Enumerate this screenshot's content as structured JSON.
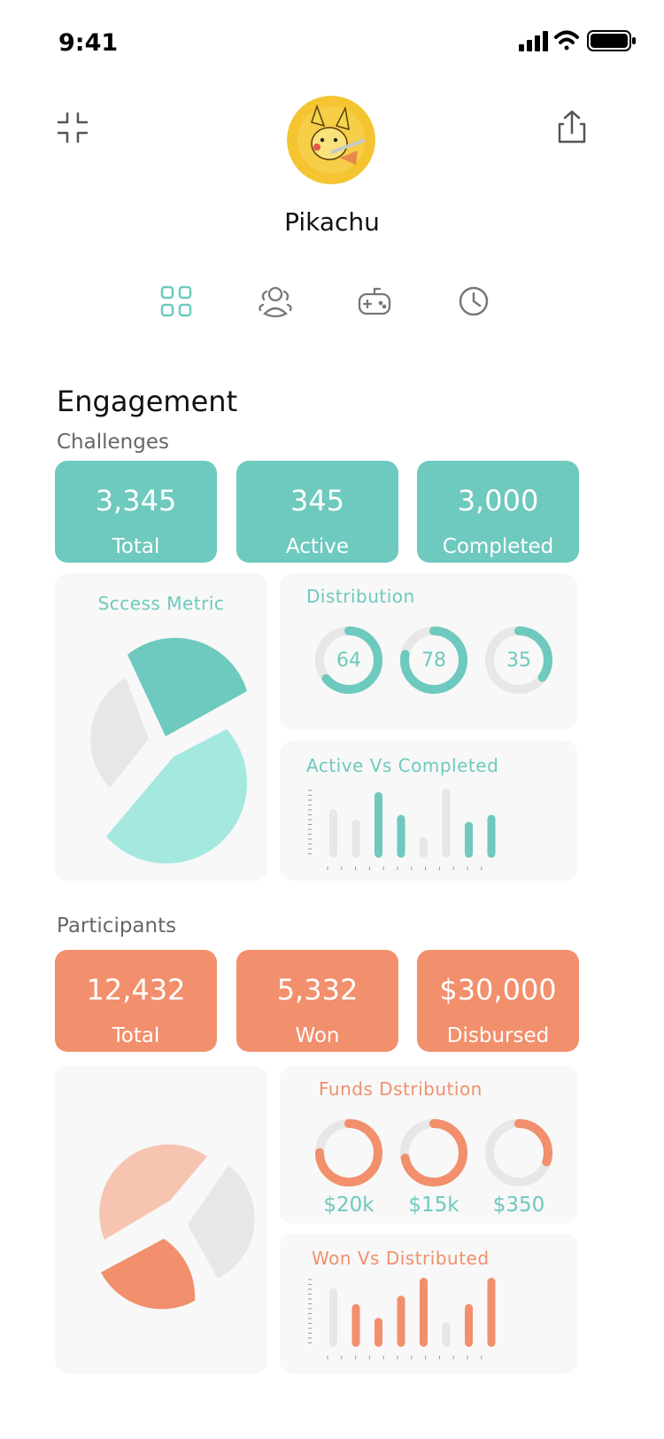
{
  "status": {
    "time": "9:41"
  },
  "profile": {
    "name": "Pikachu"
  },
  "tabs": [
    {
      "icon": "grid-icon",
      "active": true
    },
    {
      "icon": "users-icon",
      "active": false
    },
    {
      "icon": "gamepad-icon",
      "active": false
    },
    {
      "icon": "clock-icon",
      "active": false
    }
  ],
  "engagement": {
    "title": "Engagement",
    "challenges": {
      "heading": "Challenges",
      "stats": [
        {
          "value": "3,345",
          "label": "Total"
        },
        {
          "value": "345",
          "label": "Active"
        },
        {
          "value": "3,000",
          "label": "Completed"
        }
      ],
      "success_title": "Sccess Metric",
      "distribution_title": "Distribution",
      "distribution": [
        64,
        78,
        35
      ],
      "bars_title": "Active Vs Completed"
    },
    "participants": {
      "heading": "Participants",
      "stats": [
        {
          "value": "12,432",
          "label": "Total"
        },
        {
          "value": "5,332",
          "label": "Won"
        },
        {
          "value": "$30,000",
          "label": "Disbursed"
        }
      ],
      "funds_title": "Funds Dstribution",
      "funds": [
        {
          "label": "$20k",
          "fraction": 0.75
        },
        {
          "label": "$15k",
          "fraction": 0.72
        },
        {
          "label": "$350",
          "fraction": 0.3
        }
      ],
      "bars_title": "Won Vs Distributed"
    }
  },
  "colors": {
    "teal": "#6ec9be",
    "teal_light": "#a5e8e0",
    "coral": "#f28f6c",
    "coral_light": "#f7c4b2",
    "gray": "#e6e7e6"
  },
  "chart_data": [
    {
      "type": "pie",
      "series": [
        {
          "values": [
            30,
            42,
            28
          ]
        }
      ]
    },
    {
      "type": "pie",
      "series": [
        {
          "values": [
            0.64,
            0.78,
            0.35
          ]
        }
      ]
    },
    {
      "type": "bar",
      "series": [
        {
          "values": [
            0.7,
            0.55,
            0.95,
            0.62,
            0.3,
            1.0,
            0.52,
            0.62
          ],
          "highlight": [
            false,
            false,
            true,
            true,
            false,
            false,
            true,
            true
          ]
        }
      ]
    },
    {
      "type": "pie",
      "series": [
        {
          "values": [
            40,
            24,
            36
          ]
        }
      ]
    },
    {
      "type": "pie",
      "series": [
        {
          "values": [
            0.75,
            0.72,
            0.3
          ]
        }
      ]
    },
    {
      "type": "bar",
      "series": [
        {
          "values": [
            0.85,
            0.62,
            0.42,
            0.74,
            1.0,
            0.36,
            0.62,
            1.0
          ],
          "highlight": [
            false,
            true,
            true,
            true,
            true,
            false,
            true,
            true
          ]
        }
      ]
    }
  ]
}
